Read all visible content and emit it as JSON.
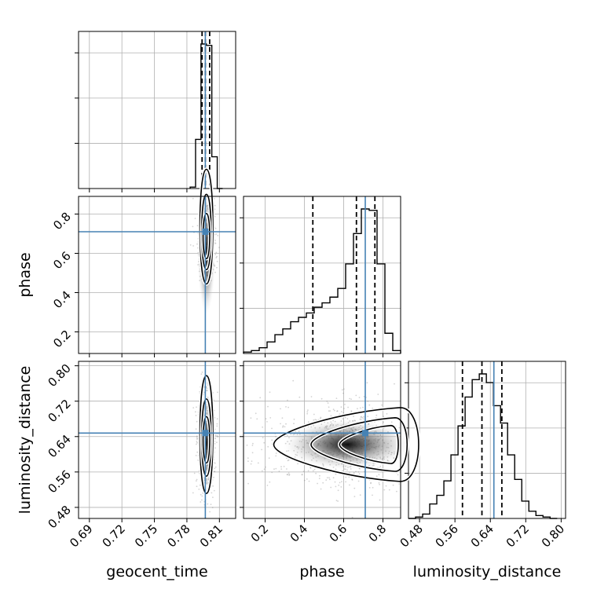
{
  "chart_data": {
    "type": "corner",
    "parameters": [
      "geocent_time",
      "phase",
      "luminosity_distance"
    ],
    "truths": {
      "geocent_time": 0.797,
      "phase": 0.71,
      "luminosity_distance": 0.648
    },
    "colors": {
      "truth": "#4682b4",
      "hist": "#000000",
      "grid": "#b0b0b0"
    },
    "grid": true,
    "diagonal": [
      {
        "param": "geocent_time",
        "xlim": [
          0.68,
          0.825
        ],
        "ticks": [
          "0.69",
          "0.72",
          "0.75",
          "0.78",
          "0.81"
        ],
        "tick_values": [
          0.69,
          0.72,
          0.75,
          0.78,
          0.81
        ],
        "bins": [
          0.783,
          0.788,
          0.793,
          0.798,
          0.803,
          0.808,
          0.813
        ],
        "counts": [
          0.01,
          0.34,
          1.0,
          0.99,
          0.22,
          0.0
        ],
        "quantiles": [
          0.794,
          0.797,
          0.801
        ]
      },
      {
        "param": "phase",
        "xlim": [
          0.09,
          0.89
        ],
        "ticks": [
          "0.2",
          "0.4",
          "0.6",
          "0.8"
        ],
        "tick_values": [
          0.2,
          0.4,
          0.6,
          0.8
        ],
        "bins": [
          0.09,
          0.13,
          0.17,
          0.21,
          0.25,
          0.29,
          0.33,
          0.37,
          0.41,
          0.45,
          0.49,
          0.53,
          0.57,
          0.61,
          0.65,
          0.69,
          0.73,
          0.77,
          0.81,
          0.85,
          0.89
        ],
        "counts": [
          0.01,
          0.02,
          0.04,
          0.08,
          0.13,
          0.17,
          0.22,
          0.25,
          0.28,
          0.32,
          0.35,
          0.39,
          0.45,
          0.62,
          0.83,
          1.0,
          0.99,
          0.62,
          0.14,
          0.02
        ],
        "quantiles": [
          0.443,
          0.665,
          0.759
        ]
      },
      {
        "param": "luminosity_distance",
        "xlim": [
          0.455,
          0.81
        ],
        "ticks": [
          "0.48",
          "0.56",
          "0.64",
          "0.72",
          "0.80"
        ],
        "tick_values": [
          0.48,
          0.56,
          0.64,
          0.72,
          0.8
        ],
        "bins": [
          0.455,
          0.471,
          0.487,
          0.503,
          0.519,
          0.535,
          0.551,
          0.567,
          0.583,
          0.599,
          0.615,
          0.631,
          0.647,
          0.663,
          0.679,
          0.695,
          0.711,
          0.727,
          0.743,
          0.759,
          0.775,
          0.791
        ],
        "counts": [
          0.0,
          0.01,
          0.03,
          0.1,
          0.16,
          0.26,
          0.44,
          0.64,
          0.84,
          0.96,
          1.0,
          0.94,
          0.78,
          0.66,
          0.44,
          0.27,
          0.12,
          0.05,
          0.02,
          0.01,
          0.0
        ],
        "quantiles": [
          0.577,
          0.621,
          0.666
        ]
      }
    ],
    "pairs": [
      {
        "x": "geocent_time",
        "y": "phase"
      },
      {
        "x": "geocent_time",
        "y": "luminosity_distance"
      },
      {
        "x": "phase",
        "y": "luminosity_distance"
      }
    ],
    "ylims": {
      "phase": [
        0.09,
        0.89
      ],
      "luminosity_distance": [
        0.455,
        0.81
      ]
    },
    "yticks": {
      "phase": {
        "labels": [
          "0.2",
          "0.4",
          "0.6",
          "0.8"
        ],
        "values": [
          0.2,
          0.4,
          0.6,
          0.8
        ]
      },
      "luminosity_distance": {
        "labels": [
          "0.48",
          "0.56",
          "0.64",
          "0.72",
          "0.80"
        ],
        "values": [
          0.48,
          0.56,
          0.64,
          0.72,
          0.8
        ]
      }
    },
    "xlabels": [
      "geocent_time",
      "phase",
      "luminosity_distance"
    ],
    "ylabels": [
      "phase",
      "luminosity_distance"
    ]
  }
}
